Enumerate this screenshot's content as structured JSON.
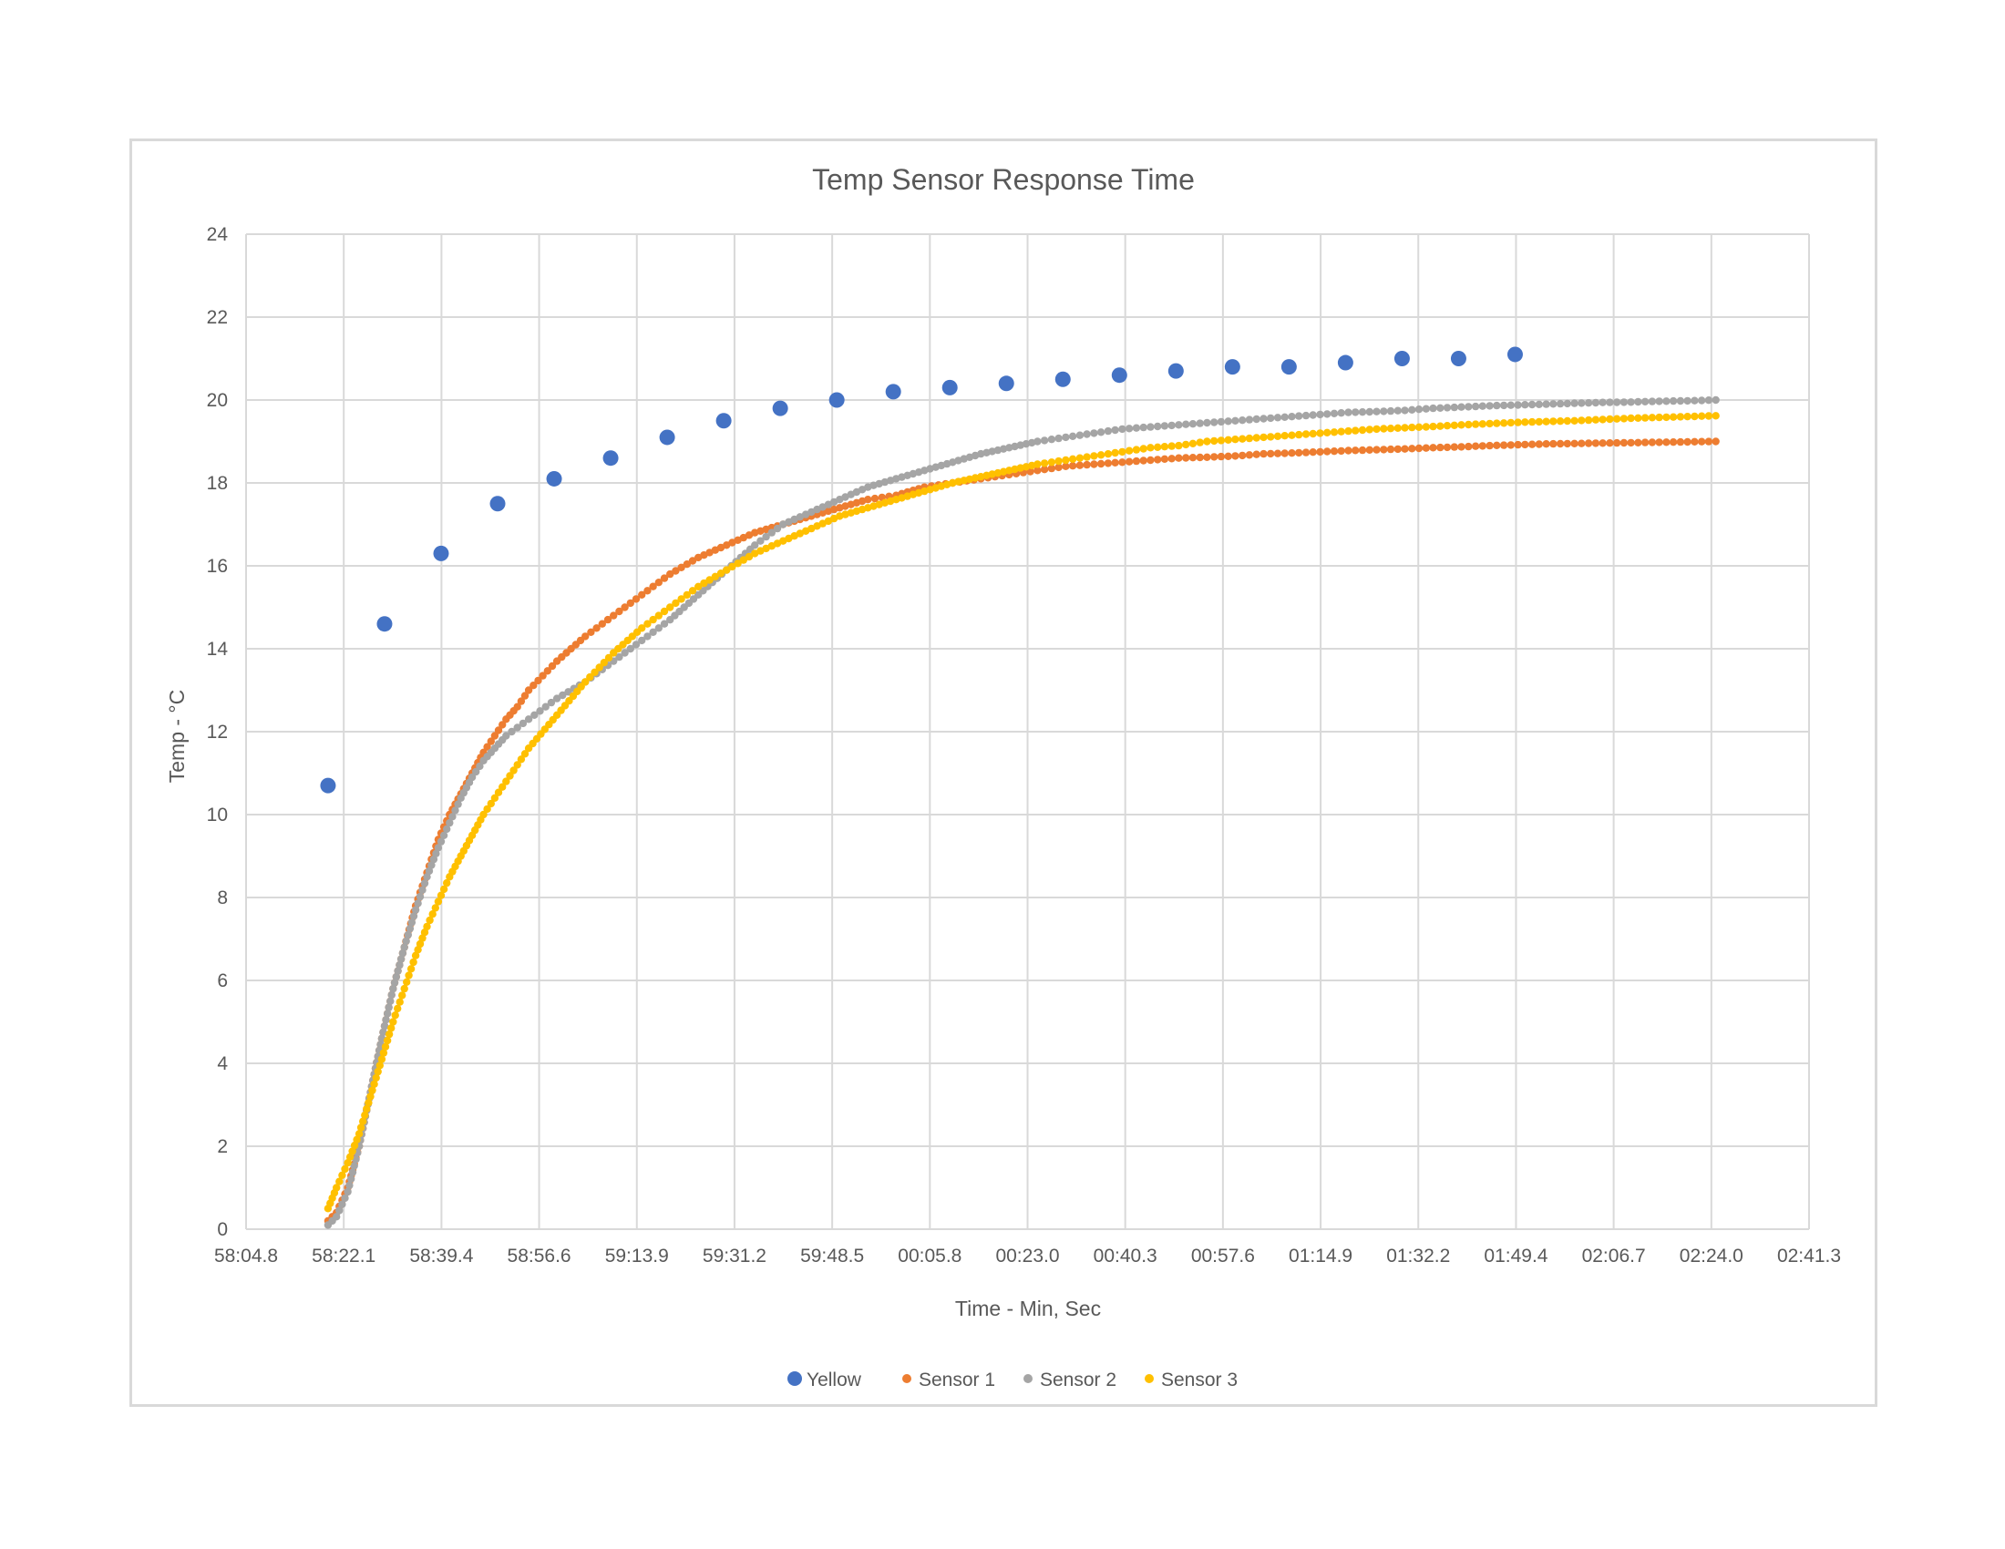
{
  "chart_data": {
    "type": "scatter",
    "title": "Temp Sensor Response Time",
    "xlabel": "Time - Min, Sec",
    "ylabel": "Temp - °C",
    "x_ticks": [
      "58:04.8",
      "58:22.1",
      "58:39.4",
      "58:56.6",
      "59:13.9",
      "59:31.2",
      "59:48.5",
      "00:05.8",
      "00:23.0",
      "00:40.3",
      "00:57.6",
      "01:14.9",
      "01:32.2",
      "01:49.4",
      "02:06.7",
      "02:24.0",
      "02:41.3"
    ],
    "x_range_seconds": [
      0,
      276.5
    ],
    "ylim": [
      0,
      24
    ],
    "y_ticks": [
      0,
      2,
      4,
      6,
      8,
      10,
      12,
      14,
      16,
      18,
      20,
      22,
      24
    ],
    "grid": true,
    "legend_position": "bottom",
    "series": [
      {
        "name": "Yellow",
        "color": "#4472c4",
        "marker": "large-dot",
        "x": [
          14.5,
          24.5,
          34.5,
          44.5,
          54.5,
          64.5,
          74.5,
          84.5,
          94.5,
          104.5,
          114.5,
          124.5,
          134.5,
          144.5,
          154.5,
          164.5,
          174.5,
          184.5,
          194.5,
          204.5,
          214.5,
          224.5
        ],
        "y": [
          10.7,
          14.6,
          16.3,
          17.5,
          18.1,
          18.6,
          19.1,
          19.5,
          19.8,
          20.0,
          20.2,
          20.3,
          20.4,
          20.5,
          20.6,
          20.7,
          20.8,
          20.8,
          20.9,
          21.0,
          21.0,
          21.1
        ]
      },
      {
        "name": "Sensor 1",
        "color": "#ed7d31",
        "marker": "dense-dots",
        "x": [
          14.5,
          16,
          18,
          20,
          22,
          24,
          26,
          28,
          30,
          32,
          34,
          36,
          38,
          40,
          42,
          44,
          46,
          48,
          50,
          55,
          60,
          65,
          70,
          75,
          80,
          85,
          90,
          95,
          100,
          105,
          110,
          115,
          120,
          125,
          130,
          135,
          140,
          145,
          150,
          155,
          160,
          165,
          170,
          175,
          180,
          185,
          190,
          195,
          200,
          205,
          210,
          215,
          220,
          225,
          230,
          235,
          240,
          245,
          250,
          255,
          260
        ],
        "y": [
          0.2,
          0.4,
          1.0,
          2.0,
          3.3,
          4.6,
          5.8,
          6.8,
          7.8,
          8.6,
          9.4,
          10.0,
          10.5,
          11.0,
          11.5,
          11.9,
          12.3,
          12.6,
          13.0,
          13.7,
          14.3,
          14.8,
          15.3,
          15.8,
          16.2,
          16.5,
          16.8,
          17.0,
          17.2,
          17.4,
          17.6,
          17.7,
          17.9,
          18.0,
          18.1,
          18.2,
          18.3,
          18.4,
          18.45,
          18.5,
          18.55,
          18.6,
          18.62,
          18.65,
          18.7,
          18.72,
          18.75,
          18.78,
          18.8,
          18.82,
          18.85,
          18.87,
          18.9,
          18.92,
          18.94,
          18.95,
          18.96,
          18.97,
          18.98,
          18.99,
          19.0
        ]
      },
      {
        "name": "Sensor 2",
        "color": "#a5a5a5",
        "marker": "dense-dots",
        "x": [
          14.5,
          16,
          18,
          20,
          22,
          24,
          26,
          28,
          30,
          32,
          34,
          36,
          38,
          40,
          42,
          44,
          46,
          48,
          50,
          55,
          60,
          65,
          70,
          75,
          80,
          85,
          90,
          95,
          100,
          105,
          110,
          115,
          120,
          125,
          130,
          135,
          140,
          145,
          150,
          155,
          160,
          165,
          170,
          175,
          180,
          185,
          190,
          195,
          200,
          205,
          210,
          215,
          220,
          225,
          230,
          235,
          240,
          245,
          250,
          255,
          260
        ],
        "y": [
          0.1,
          0.3,
          0.9,
          2.0,
          3.3,
          4.6,
          5.8,
          6.8,
          7.7,
          8.5,
          9.2,
          9.8,
          10.4,
          10.9,
          11.3,
          11.6,
          11.9,
          12.1,
          12.3,
          12.8,
          13.2,
          13.7,
          14.2,
          14.7,
          15.3,
          15.9,
          16.5,
          17.0,
          17.3,
          17.6,
          17.9,
          18.1,
          18.3,
          18.5,
          18.7,
          18.85,
          19.0,
          19.1,
          19.2,
          19.3,
          19.35,
          19.4,
          19.45,
          19.5,
          19.55,
          19.6,
          19.65,
          19.7,
          19.72,
          19.75,
          19.8,
          19.83,
          19.86,
          19.88,
          19.9,
          19.92,
          19.94,
          19.95,
          19.97,
          19.98,
          20.0
        ]
      },
      {
        "name": "Sensor 3",
        "color": "#ffc000",
        "marker": "dense-dots",
        "x": [
          14.5,
          16,
          18,
          20,
          22,
          24,
          26,
          28,
          30,
          32,
          34,
          36,
          38,
          40,
          42,
          44,
          46,
          48,
          50,
          55,
          60,
          65,
          70,
          75,
          80,
          85,
          90,
          95,
          100,
          105,
          110,
          115,
          120,
          125,
          130,
          135,
          140,
          145,
          150,
          155,
          160,
          165,
          170,
          175,
          180,
          185,
          190,
          195,
          200,
          205,
          210,
          215,
          220,
          225,
          230,
          235,
          240,
          245,
          250,
          255,
          260
        ],
        "y": [
          0.5,
          1.0,
          1.6,
          2.3,
          3.2,
          4.1,
          5.0,
          5.8,
          6.6,
          7.3,
          7.9,
          8.5,
          9.0,
          9.5,
          10.0,
          10.4,
          10.8,
          11.2,
          11.6,
          12.4,
          13.2,
          13.9,
          14.5,
          15.0,
          15.5,
          15.9,
          16.3,
          16.6,
          16.9,
          17.2,
          17.4,
          17.6,
          17.8,
          18.0,
          18.15,
          18.3,
          18.45,
          18.55,
          18.65,
          18.75,
          18.85,
          18.9,
          19.0,
          19.05,
          19.1,
          19.15,
          19.2,
          19.25,
          19.3,
          19.33,
          19.36,
          19.4,
          19.43,
          19.46,
          19.48,
          19.5,
          19.53,
          19.56,
          19.58,
          19.6,
          19.62
        ]
      }
    ]
  }
}
